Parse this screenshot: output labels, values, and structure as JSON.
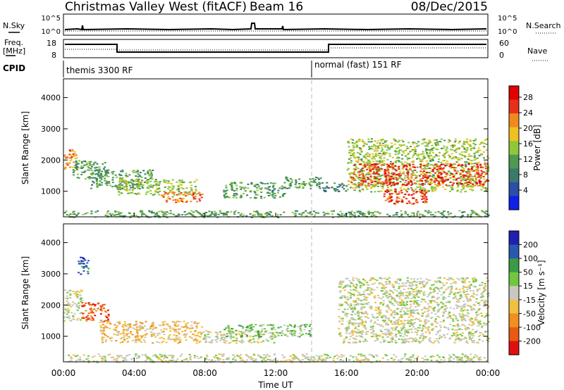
{
  "header": {
    "radar": "Christmas Valley West (fitACF)",
    "beam": "Beam 16",
    "date": "08/Dec/2015"
  },
  "aux": {
    "nsky_label": "N.Sky",
    "nsearch_label": "N.Search",
    "noise_ticks": [
      "10^5",
      "10^0"
    ],
    "freq_label": "Freq.",
    "freq_unit": "[MHz]",
    "freq_ticks": [
      "18",
      "8"
    ],
    "nave_label": "Nave",
    "nave_ticks": [
      "60",
      "0"
    ],
    "cpid_label": "CPID",
    "cpid_1": "themis 3300 RF",
    "cpid_2": "normal (fast) 151 RF"
  },
  "axes": {
    "ylabel": "Slant Range [km]",
    "xlabel": "Time UT",
    "xticks": [
      "00:00",
      "04:00",
      "08:00",
      "12:00",
      "16:00",
      "20:00",
      "00:00"
    ],
    "yticks": [
      "1000",
      "2000",
      "3000",
      "4000"
    ]
  },
  "power_bar": {
    "label": "Power [dB]",
    "ticks": [
      "4",
      "8",
      "12",
      "16",
      "20",
      "24",
      "28"
    ],
    "colors": [
      "#1020e8",
      "#2c4ea8",
      "#3a7a6a",
      "#4e9a52",
      "#8ec83a",
      "#f0c020",
      "#f08a20",
      "#e83018",
      "#e00000"
    ]
  },
  "velocity_bar": {
    "label": "Velocity [m s⁻¹]",
    "ticks": [
      "200",
      "100",
      "50",
      "15",
      "-15",
      "-50",
      "-100",
      "-200"
    ],
    "colors": [
      "#2020b0",
      "#2858b0",
      "#3a9a48",
      "#70c840",
      "#c8c8c0",
      "#f0c040",
      "#f09020",
      "#e85a10",
      "#e01010"
    ]
  },
  "chart_data": [
    {
      "type": "heatmap",
      "title": "",
      "xlabel": "Time UT",
      "ylabel": "Slant Range [km]",
      "xlim": [
        0,
        24
      ],
      "ylim": [
        180,
        4600
      ],
      "colorbar": "Power [dB]",
      "color_range": [
        0,
        32
      ],
      "regions": [
        {
          "t": [
            0.0,
            0.7
          ],
          "r": [
            1700,
            2400
          ],
          "value": 24
        },
        {
          "t": [
            0.5,
            2.5
          ],
          "r": [
            1400,
            2000
          ],
          "value": 12
        },
        {
          "t": [
            1.5,
            5.0
          ],
          "r": [
            1100,
            1700
          ],
          "value": 10
        },
        {
          "t": [
            3.0,
            7.5
          ],
          "r": [
            900,
            1400
          ],
          "value": 14
        },
        {
          "t": [
            5.5,
            7.8
          ],
          "r": [
            650,
            1000
          ],
          "value": 22
        },
        {
          "t": [
            9.0,
            12.5
          ],
          "r": [
            800,
            1300
          ],
          "value": 12
        },
        {
          "t": [
            12.5,
            14.5
          ],
          "r": [
            1100,
            1500
          ],
          "value": 10
        },
        {
          "t": [
            14.5,
            16.0
          ],
          "r": [
            1000,
            1300
          ],
          "value": 8
        },
        {
          "t": [
            16.0,
            24.0
          ],
          "r": [
            1000,
            2700
          ],
          "value": 14
        },
        {
          "t": [
            16.2,
            24.0
          ],
          "r": [
            1200,
            1900
          ],
          "value": 28
        },
        {
          "t": [
            18.0,
            20.5
          ],
          "r": [
            600,
            1100
          ],
          "value": 28
        },
        {
          "t": [
            0.0,
            24.0
          ],
          "r": [
            180,
            400
          ],
          "value": 10
        }
      ]
    },
    {
      "type": "heatmap",
      "title": "",
      "xlabel": "Time UT",
      "ylabel": "Slant Range [km]",
      "xlim": [
        0,
        24
      ],
      "ylim": [
        180,
        4600
      ],
      "colorbar": "Velocity [m s⁻¹]",
      "color_range": [
        -250,
        250
      ],
      "regions": [
        {
          "t": [
            0.0,
            1.0
          ],
          "r": [
            1500,
            2500
          ],
          "value": 0
        },
        {
          "t": [
            1.0,
            2.5
          ],
          "r": [
            1500,
            2100
          ],
          "value": -200
        },
        {
          "t": [
            0.8,
            1.4
          ],
          "r": [
            3000,
            3600
          ],
          "value": 200
        },
        {
          "t": [
            2.0,
            7.8
          ],
          "r": [
            800,
            1500
          ],
          "value": -50
        },
        {
          "t": [
            7.8,
            12.0
          ],
          "r": [
            800,
            1200
          ],
          "value": 0
        },
        {
          "t": [
            9.0,
            14.0
          ],
          "r": [
            1000,
            1400
          ],
          "value": 50
        },
        {
          "t": [
            15.5,
            24.0
          ],
          "r": [
            800,
            2900
          ],
          "value": 0
        },
        {
          "t": [
            0.0,
            24.0
          ],
          "r": [
            180,
            450
          ],
          "value": 30
        }
      ]
    }
  ]
}
